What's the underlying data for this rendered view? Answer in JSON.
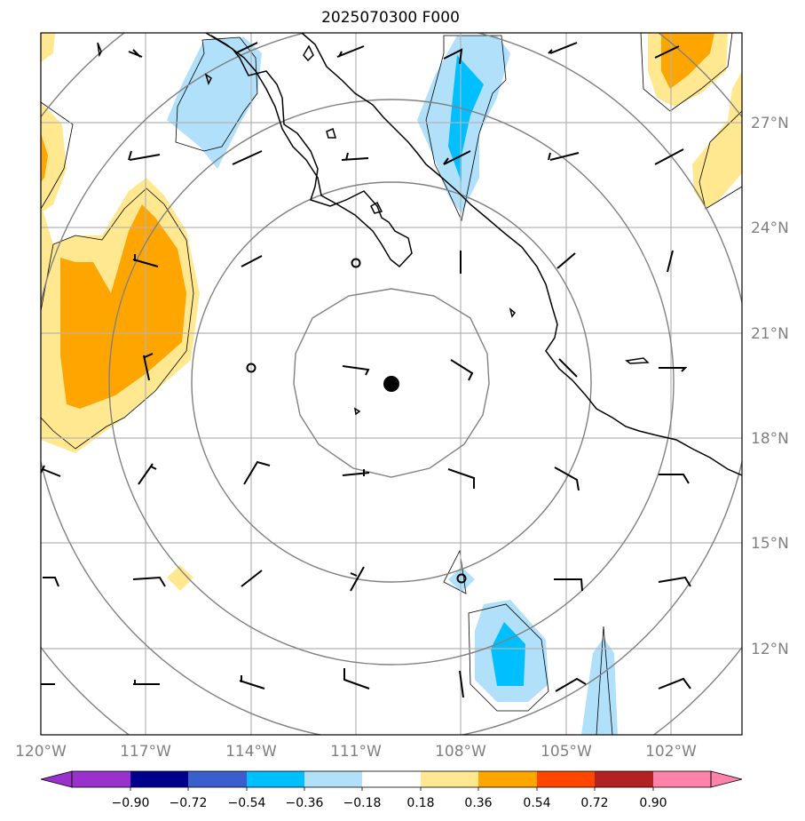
{
  "title": "2025070300 F000",
  "lon_labels": [
    "120°W",
    "117°W",
    "114°W",
    "111°W",
    "108°W",
    "105°W",
    "102°W"
  ],
  "lat_labels": [
    "27°N",
    "24°N",
    "21°N",
    "18°N",
    "15°N",
    "12°N"
  ],
  "colorbar": {
    "ticks": [
      "−0.90",
      "−0.72",
      "−0.54",
      "−0.36",
      "−0.18",
      "0.18",
      "0.36",
      "0.54",
      "0.72",
      "0.90"
    ],
    "colors": {
      "under": "#9932cc",
      "bins": [
        "#00008b",
        "#3a5fcd",
        "#00bfff",
        "#b0e0fa",
        "#ffffff",
        "#ffe88f",
        "#ffa500",
        "#ff4500",
        "#b22222"
      ],
      "over": "#ff82ab"
    }
  },
  "colors": {
    "coast": "#000000",
    "range_rings": "#808080",
    "grid": "#b4b4b4",
    "center_marker": "#000000"
  }
}
